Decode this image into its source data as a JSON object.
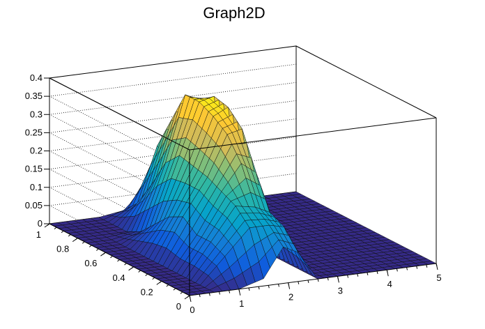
{
  "chart_data": {
    "type": "surface",
    "title": "Graph2D",
    "xlabel": "",
    "ylabel": "",
    "zlabel": "",
    "xlim": [
      0,
      5
    ],
    "ylim": [
      0,
      1
    ],
    "zlim": [
      0,
      0.4
    ],
    "x_ticks": [
      {
        "value": 0,
        "label": "0"
      },
      {
        "value": 1,
        "label": "1"
      },
      {
        "value": 2,
        "label": "2"
      },
      {
        "value": 3,
        "label": "3"
      },
      {
        "value": 4,
        "label": "4"
      },
      {
        "value": 5,
        "label": "5"
      }
    ],
    "y_ticks": [
      {
        "value": 0,
        "label": "0"
      },
      {
        "value": 0.2,
        "label": "0.2"
      },
      {
        "value": 0.4,
        "label": "0.4"
      },
      {
        "value": 0.6,
        "label": "0.6"
      },
      {
        "value": 0.8,
        "label": "0.8"
      },
      {
        "value": 1,
        "label": "1"
      }
    ],
    "z_ticks": [
      {
        "value": 0,
        "label": "0"
      },
      {
        "value": 0.05,
        "label": "0.05"
      },
      {
        "value": 0.1,
        "label": "0.1"
      },
      {
        "value": 0.15,
        "label": "0.15"
      },
      {
        "value": 0.2,
        "label": "0.2"
      },
      {
        "value": 0.25,
        "label": "0.25"
      },
      {
        "value": 0.3,
        "label": "0.3"
      },
      {
        "value": 0.35,
        "label": "0.35"
      },
      {
        "value": 0.4,
        "label": "0.4"
      }
    ],
    "grid": true,
    "colormap": [
      "#352a87",
      "#0f5cdd",
      "#1481d6",
      "#06a4ca",
      "#2eb7a4",
      "#87bf77",
      "#d1bb59",
      "#fec832",
      "#f9fb0e"
    ],
    "surface_x": [
      0,
      0.5,
      1,
      1.5,
      1.9,
      2.2,
      2.6,
      3,
      3.5,
      4,
      4.5,
      5
    ],
    "surface_y": [
      0,
      0.1,
      0.2,
      0.3,
      0.4,
      0.5,
      0.6,
      0.7,
      0.8,
      0.9,
      1
    ],
    "surface_z": [
      [
        0,
        0,
        0,
        0,
        0,
        0,
        0,
        0,
        0,
        0,
        0
      ],
      [
        0,
        0,
        0,
        0,
        0,
        0,
        0,
        0,
        0,
        0,
        0
      ],
      [
        0,
        0.07,
        0.09,
        0.09,
        0.12,
        0.1,
        0.06,
        0.02,
        0,
        0,
        0
      ],
      [
        0.02,
        0.14,
        0.18,
        0.2,
        0.22,
        0.23,
        0.24,
        0.2,
        0.12,
        0.05,
        0.01
      ],
      [
        0.1,
        0.14,
        0.17,
        0.27,
        0.33,
        0.36,
        0.38,
        0.38,
        0.29,
        0.2,
        0.06
      ],
      [
        0.08,
        0.13,
        0.15,
        0.24,
        0.34,
        0.38,
        0.39,
        0.36,
        0.28,
        0.15,
        0.03
      ],
      [
        0,
        0,
        0,
        0,
        0,
        0,
        0,
        0,
        0,
        0,
        0
      ],
      [
        0,
        0,
        0,
        0,
        0,
        0,
        0,
        0,
        0,
        0,
        0
      ],
      [
        0,
        0,
        0,
        0,
        0,
        0,
        0,
        0,
        0,
        0,
        0
      ],
      [
        0,
        0,
        0,
        0,
        0,
        0,
        0,
        0,
        0,
        0,
        0
      ],
      [
        0,
        0,
        0,
        0,
        0,
        0,
        0,
        0,
        0,
        0,
        0
      ],
      [
        0,
        0,
        0,
        0,
        0,
        0,
        0,
        0,
        0,
        0,
        0
      ]
    ]
  }
}
